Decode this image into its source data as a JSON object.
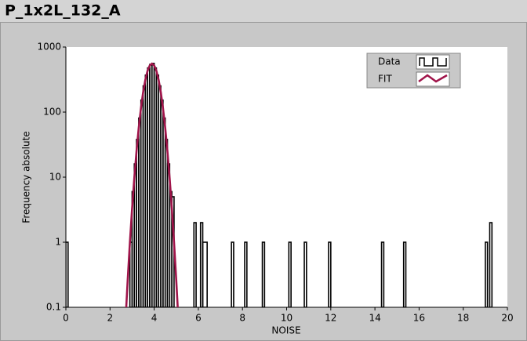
{
  "chart_data": {
    "type": "histogram",
    "title": "P_1x2L_132_A",
    "xlabel": "NOISE",
    "ylabel": "Frequency absolute",
    "xlim": [
      0,
      20
    ],
    "xticks": [
      0,
      2,
      4,
      6,
      8,
      10,
      12,
      14,
      16,
      18,
      20
    ],
    "ylim": [
      0.1,
      1000
    ],
    "yticks": [
      0.1,
      1,
      10,
      100,
      1000
    ],
    "log_y": true,
    "bins": [
      0,
      0.1,
      2.9,
      3.0,
      3.1,
      3.2,
      3.3,
      3.4,
      3.5,
      3.6,
      3.7,
      3.8,
      3.9,
      4.0,
      4.1,
      4.2,
      4.3,
      4.4,
      4.5,
      4.6,
      4.7,
      4.8,
      4.9,
      5.8,
      5.9,
      6.1,
      6.2,
      6.4,
      7.5,
      7.6,
      8.1,
      8.2,
      8.9,
      9.0,
      10.1,
      10.2,
      10.8,
      10.9,
      11.9,
      12.0,
      14.3,
      14.4,
      15.3,
      15.4,
      19.0,
      19.1,
      19.2,
      19.3
    ],
    "legend": "top-right",
    "series": [
      {
        "name": "Data",
        "type": "histogram",
        "color": "#000000",
        "values": [
          1,
          0,
          1,
          6,
          16,
          38,
          81,
          153,
          253,
          370,
          477,
          541,
          560,
          477,
          370,
          253,
          153,
          81,
          38,
          16,
          6,
          5,
          0,
          2,
          0,
          2,
          1,
          0,
          1,
          0,
          1,
          0,
          1,
          0,
          1,
          0,
          1,
          0,
          1,
          0,
          1,
          0,
          1,
          0,
          1,
          0,
          2
        ]
      },
      {
        "name": "FIT",
        "type": "line",
        "color": "#a0144a",
        "x": [
          2.7,
          2.8,
          2.9,
          3.0,
          3.1,
          3.2,
          3.3,
          3.4,
          3.5,
          3.6,
          3.7,
          3.8,
          3.9,
          4.0,
          4.1,
          4.2,
          4.3,
          4.4,
          4.5,
          4.6,
          4.7,
          4.8,
          4.9,
          5.0,
          5.1
        ],
        "values": [
          0.061,
          0.26,
          0.99,
          3.3,
          9.7,
          25,
          57,
          114,
          202,
          314,
          431,
          521,
          555,
          521,
          431,
          314,
          202,
          114,
          57,
          25,
          9.7,
          3.3,
          0.99,
          0.26,
          0.061
        ]
      }
    ]
  }
}
